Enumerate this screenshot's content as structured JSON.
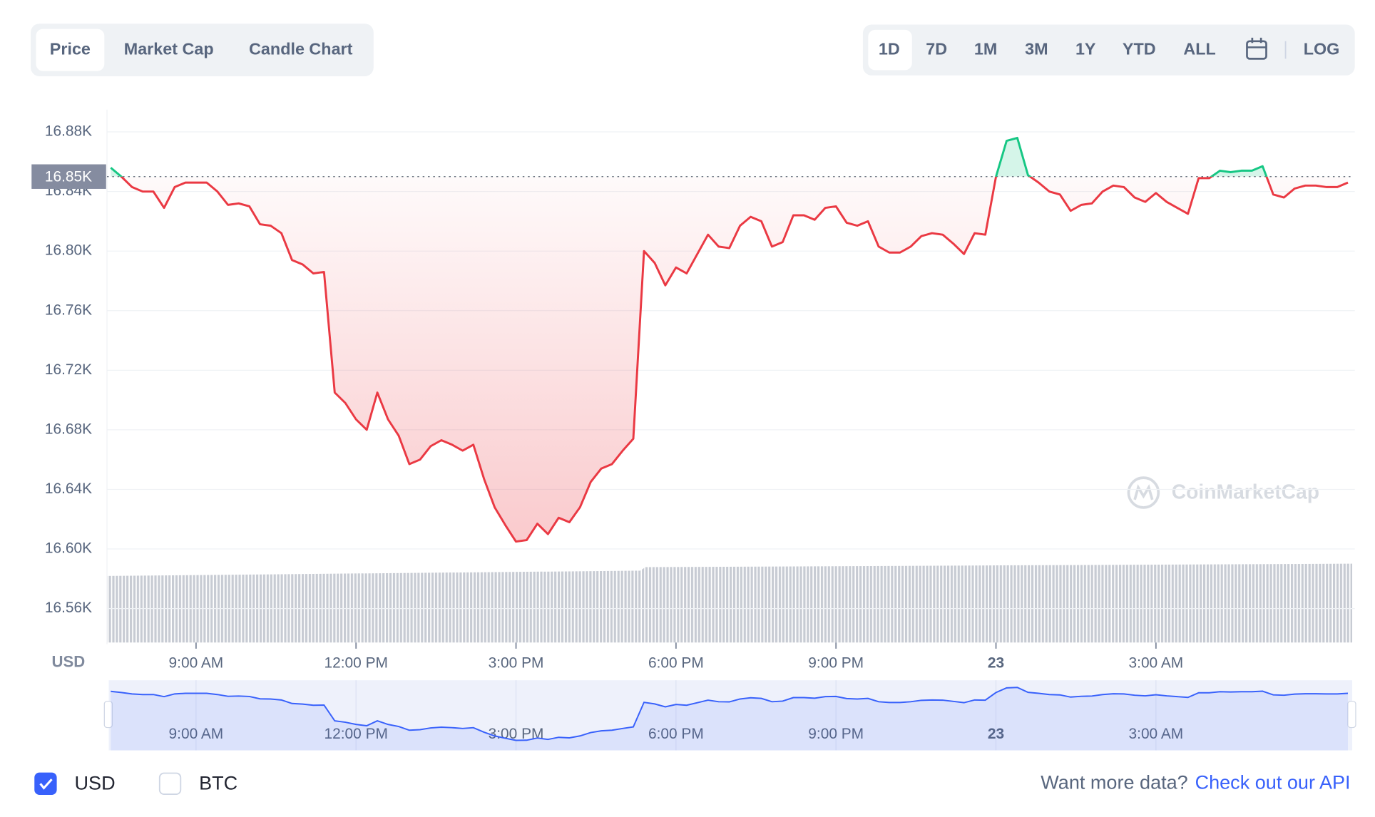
{
  "tabs": [
    {
      "label": "Price",
      "selected": true
    },
    {
      "label": "Market Cap",
      "selected": false
    },
    {
      "label": "Candle Chart",
      "selected": false
    }
  ],
  "ranges": [
    {
      "label": "1D",
      "selected": true
    },
    {
      "label": "7D",
      "selected": false
    },
    {
      "label": "1M",
      "selected": false
    },
    {
      "label": "3M",
      "selected": false
    },
    {
      "label": "1Y",
      "selected": false
    },
    {
      "label": "YTD",
      "selected": false
    },
    {
      "label": "ALL",
      "selected": false
    }
  ],
  "log_button": "LOG",
  "watermark": "CoinMarketCap",
  "currencies": [
    {
      "label": "USD",
      "checked": true
    },
    {
      "label": "BTC",
      "checked": false
    }
  ],
  "footer": {
    "text": "Want more data?",
    "link": "Check out our API"
  },
  "chart_data": {
    "type": "line",
    "y_unit": "USD",
    "up_color": "#16c784",
    "down_color": "#ea3943",
    "navigator_color": "#3861fb",
    "reference": {
      "value": 16850,
      "label": "16.85K"
    },
    "xlim": [
      7.33,
      30.68
    ],
    "ylim": [
      16536,
      16895
    ],
    "xticks": [
      {
        "value": 9,
        "label": "9:00 AM"
      },
      {
        "value": 12,
        "label": "12:00 PM"
      },
      {
        "value": 15,
        "label": "3:00 PM"
      },
      {
        "value": 18,
        "label": "6:00 PM"
      },
      {
        "value": 21,
        "label": "9:00 PM"
      },
      {
        "value": 24,
        "label": "23"
      },
      {
        "value": 27,
        "label": "3:00 AM"
      }
    ],
    "yticks": [
      {
        "value": 16880,
        "label": "16.88K"
      },
      {
        "value": 16840,
        "label": "16.84K"
      },
      {
        "value": 16800,
        "label": "16.80K"
      },
      {
        "value": 16760,
        "label": "16.76K"
      },
      {
        "value": 16720,
        "label": "16.72K"
      },
      {
        "value": 16680,
        "label": "16.68K"
      },
      {
        "value": 16640,
        "label": "16.64K"
      },
      {
        "value": 16600,
        "label": "16.60K"
      },
      {
        "value": 16560,
        "label": "16.56K"
      }
    ],
    "grid": true,
    "x": [
      7.4,
      7.6,
      7.8,
      8.0,
      8.2,
      8.4,
      8.6,
      8.8,
      9.0,
      9.2,
      9.4,
      9.6,
      9.8,
      10.0,
      10.2,
      10.4,
      10.6,
      10.8,
      11.0,
      11.2,
      11.4,
      11.6,
      11.8,
      12.0,
      12.2,
      12.4,
      12.6,
      12.8,
      13.0,
      13.2,
      13.4,
      13.6,
      13.8,
      14.0,
      14.2,
      14.4,
      14.6,
      14.8,
      15.0,
      15.2,
      15.4,
      15.6,
      15.8,
      16.0,
      16.2,
      16.4,
      16.6,
      16.8,
      17.0,
      17.2,
      17.4,
      17.6,
      17.8,
      18.0,
      18.2,
      18.4,
      18.6,
      18.8,
      19.0,
      19.2,
      19.4,
      19.6,
      19.8,
      20.0,
      20.2,
      20.4,
      20.6,
      20.8,
      21.0,
      21.2,
      21.4,
      21.6,
      21.8,
      22.0,
      22.2,
      22.4,
      22.6,
      22.8,
      23.0,
      23.2,
      23.4,
      23.6,
      23.8,
      24.0,
      24.2,
      24.4,
      24.6,
      24.8,
      25.0,
      25.2,
      25.4,
      25.6,
      25.8,
      26.0,
      26.2,
      26.4,
      26.6,
      26.8,
      27.0,
      27.2,
      27.4,
      27.6,
      27.8,
      28.0,
      28.2,
      28.4,
      28.6,
      28.8,
      29.0,
      29.2,
      29.4,
      29.6,
      29.8,
      30.0,
      30.2,
      30.4,
      30.6
    ],
    "values": [
      16856,
      16850,
      16843,
      16840,
      16840,
      16829,
      16843,
      16846,
      16846,
      16846,
      16840,
      16831,
      16832,
      16830,
      16818,
      16817,
      16812,
      16794,
      16791,
      16785,
      16786,
      16705,
      16698,
      16687,
      16680,
      16705,
      16687,
      16676,
      16657,
      16660,
      16669,
      16673,
      16670,
      16666,
      16670,
      16647,
      16628,
      16616,
      16605,
      16606,
      16617,
      16610,
      16621,
      16618,
      16628,
      16645,
      16654,
      16657,
      16666,
      16674,
      16800,
      16792,
      16777,
      16789,
      16785,
      16798,
      16811,
      16803,
      16802,
      16817,
      16823,
      16820,
      16803,
      16806,
      16824,
      16824,
      16821,
      16829,
      16830,
      16819,
      16817,
      16820,
      16803,
      16799,
      16799,
      16803,
      16810,
      16812,
      16811,
      16805,
      16798,
      16812,
      16811,
      16850,
      16874,
      16876,
      16851,
      16846,
      16840,
      16838,
      16827,
      16831,
      16832,
      16840,
      16844,
      16843,
      16836,
      16833,
      16839,
      16833,
      16829,
      16825,
      16849,
      16849,
      16854,
      16853,
      16854,
      16854,
      16857,
      16838,
      16836,
      16842,
      16844,
      16844,
      16843,
      16843,
      16846
    ]
  }
}
